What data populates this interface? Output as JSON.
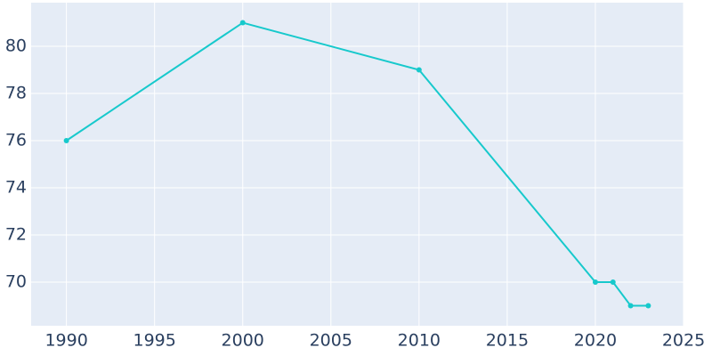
{
  "chart_data": {
    "type": "line",
    "x": [
      1990,
      2000,
      2010,
      2020,
      2021,
      2022,
      2023
    ],
    "series": [
      {
        "color": "#17c9cc",
        "values": [
          76,
          81,
          79,
          70,
          70,
          69,
          69
        ]
      }
    ],
    "xlim": [
      1988,
      2025
    ],
    "xticks": [
      1990,
      1995,
      2000,
      2005,
      2010,
      2015,
      2020,
      2025
    ],
    "ylim": [
      68.15,
      81.85
    ],
    "yticks": [
      70,
      72,
      74,
      76,
      78,
      80
    ],
    "grid": true
  }
}
